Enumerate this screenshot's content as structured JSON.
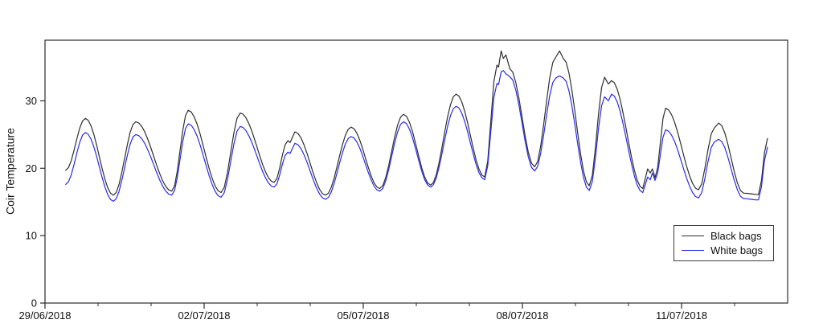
{
  "page": {
    "background": "#ffffff"
  },
  "chart_data": {
    "type": "line",
    "title": "",
    "xlabel": "",
    "ylabel": "Coir Temperature",
    "grid": false,
    "x_axis": {
      "unit": "days_since_29/06/2018",
      "range_days": [
        0,
        14
      ],
      "major_ticks": [
        {
          "day": 0,
          "label": "29/06/2018"
        },
        {
          "day": 3,
          "label": "02/07/2018"
        },
        {
          "day": 6,
          "label": "05/07/2018"
        },
        {
          "day": 9,
          "label": "08/07/2018"
        },
        {
          "day": 12,
          "label": "11/07/2018"
        }
      ],
      "minor_tick_days": [
        1,
        2,
        4,
        5,
        7,
        8,
        10,
        11,
        13
      ]
    },
    "y_axis": {
      "range": [
        0,
        39
      ],
      "ticks": [
        0,
        10,
        20,
        30
      ]
    },
    "legend": {
      "position": "bottom-right",
      "entries": [
        {
          "name": "Black bags",
          "color": "#2e2e2e"
        },
        {
          "name": "White bags",
          "color": "#2a2aef"
        }
      ]
    },
    "series": [
      {
        "name": "Black bags",
        "color": "#2e2e2e",
        "points": [
          [
            0.39,
            19.7
          ],
          [
            0.76,
            27.4
          ],
          [
            1.29,
            16.0
          ],
          [
            1.71,
            26.9
          ],
          [
            2.39,
            16.6
          ],
          [
            2.7,
            28.6
          ],
          [
            3.32,
            16.4
          ],
          [
            3.68,
            28.2
          ],
          [
            4.32,
            17.9
          ],
          [
            4.58,
            24.1
          ],
          [
            4.62,
            23.8
          ],
          [
            4.71,
            25.4
          ],
          [
            5.29,
            16.0
          ],
          [
            5.77,
            26.1
          ],
          [
            6.31,
            17.0
          ],
          [
            6.76,
            28.0
          ],
          [
            7.27,
            17.5
          ],
          [
            7.75,
            31.0
          ],
          [
            8.29,
            18.7
          ],
          [
            8.52,
            35.3
          ],
          [
            8.55,
            35.0
          ],
          [
            8.6,
            37.4
          ],
          [
            8.64,
            36.3
          ],
          [
            8.69,
            36.8
          ],
          [
            8.76,
            34.8
          ],
          [
            9.23,
            20.2
          ],
          [
            9.63,
            36.5
          ],
          [
            9.7,
            37.4
          ],
          [
            9.77,
            36.3
          ],
          [
            10.26,
            17.4
          ],
          [
            10.55,
            33.5
          ],
          [
            10.62,
            32.5
          ],
          [
            10.68,
            33.0
          ],
          [
            11.27,
            17.0
          ],
          [
            11.36,
            19.9
          ],
          [
            11.41,
            19.3
          ],
          [
            11.45,
            19.9
          ],
          [
            11.5,
            18.6
          ],
          [
            11.7,
            28.9
          ],
          [
            12.32,
            16.8
          ],
          [
            12.62,
            26.0
          ],
          [
            12.7,
            26.7
          ],
          [
            13.17,
            16.3
          ],
          [
            13.45,
            16.1
          ],
          [
            13.62,
            24.4
          ]
        ]
      },
      {
        "name": "White bags",
        "color": "#2a2aef",
        "points": [
          [
            0.39,
            17.6
          ],
          [
            0.76,
            25.3
          ],
          [
            1.29,
            15.1
          ],
          [
            1.71,
            25.0
          ],
          [
            2.39,
            16.0
          ],
          [
            2.7,
            26.6
          ],
          [
            3.32,
            15.7
          ],
          [
            3.68,
            26.2
          ],
          [
            4.32,
            17.2
          ],
          [
            4.58,
            22.4
          ],
          [
            4.62,
            22.2
          ],
          [
            4.71,
            23.7
          ],
          [
            5.29,
            15.4
          ],
          [
            5.77,
            24.7
          ],
          [
            6.31,
            16.6
          ],
          [
            6.76,
            26.9
          ],
          [
            7.27,
            17.2
          ],
          [
            7.75,
            29.2
          ],
          [
            8.29,
            18.3
          ],
          [
            8.52,
            32.6
          ],
          [
            8.55,
            32.4
          ],
          [
            8.6,
            34.3
          ],
          [
            8.64,
            34.5
          ],
          [
            8.69,
            34.0
          ],
          [
            8.76,
            33.6
          ],
          [
            9.23,
            19.6
          ],
          [
            9.63,
            33.4
          ],
          [
            9.7,
            33.7
          ],
          [
            9.77,
            33.4
          ],
          [
            10.26,
            16.7
          ],
          [
            10.55,
            30.6
          ],
          [
            10.62,
            30.0
          ],
          [
            10.68,
            31.0
          ],
          [
            11.27,
            16.4
          ],
          [
            11.36,
            18.7
          ],
          [
            11.41,
            18.3
          ],
          [
            11.45,
            19.3
          ],
          [
            11.5,
            18.2
          ],
          [
            11.7,
            25.7
          ],
          [
            12.32,
            15.6
          ],
          [
            12.62,
            23.9
          ],
          [
            12.7,
            24.3
          ],
          [
            13.17,
            15.5
          ],
          [
            13.45,
            15.3
          ],
          [
            13.62,
            23.1
          ]
        ]
      }
    ]
  }
}
